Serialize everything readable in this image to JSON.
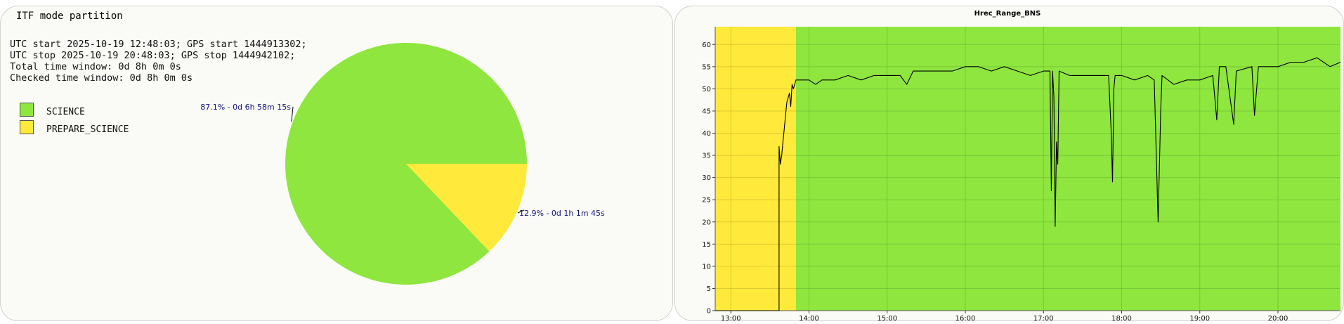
{
  "pie_panel": {
    "title": "ITF mode partition",
    "info_lines": [
      "UTC start 2025-10-19 12:48:03; GPS start 1444913302;",
      "UTC stop 2025-10-19 20:48:03; GPS stop 1444942102;",
      "Total time window: 0d 8h 0m 0s",
      "Checked time window: 0d 8h 0m 0s"
    ]
  },
  "line_panel": {
    "title": "Hrec_Range_BNS"
  },
  "chart_data": [
    {
      "type": "pie",
      "title": "ITF mode partition",
      "slices": [
        {
          "name": "SCIENCE",
          "percent": 87.1,
          "label": "87.1% - 0d 6h 58m 15s",
          "color": "#8ee63e"
        },
        {
          "name": "PREPARE_SCIENCE",
          "percent": 12.9,
          "label": "12.9% - 0d 1h 1m 45s",
          "color": "#ffe93a"
        }
      ],
      "legend": [
        "SCIENCE",
        "PREPARE_SCIENCE"
      ],
      "legend_position": "top-left"
    },
    {
      "type": "line",
      "title": "Hrec_Range_BNS",
      "xlabel": "",
      "ylabel": "",
      "x_ticks": [
        "13:00",
        "14:00",
        "15:00",
        "16:00",
        "17:00",
        "18:00",
        "19:00",
        "20:00"
      ],
      "y_ticks": [
        0,
        5,
        10,
        15,
        20,
        25,
        30,
        35,
        40,
        45,
        50,
        55,
        60
      ],
      "xlim": [
        "12:48",
        "20:48"
      ],
      "ylim": [
        0,
        64
      ],
      "grid": true,
      "background_bands": [
        {
          "mode": "PREPARE_SCIENCE",
          "from": "12:48",
          "to": "13:50",
          "color": "#ffe93a"
        },
        {
          "mode": "SCIENCE",
          "from": "13:50",
          "to": "20:48",
          "color": "#8ee63e"
        }
      ],
      "series": [
        {
          "color": "#000000",
          "points": [
            [
              "12:48",
              0
            ],
            [
              "13:30",
              0
            ],
            [
              "13:37",
              0
            ],
            [
              "13:37",
              37
            ],
            [
              "13:38",
              33
            ],
            [
              "13:39",
              35
            ],
            [
              "13:40",
              38
            ],
            [
              "13:41",
              41
            ],
            [
              "13:42",
              44
            ],
            [
              "13:43",
              47
            ],
            [
              "13:44",
              48
            ],
            [
              "13:45",
              49
            ],
            [
              "13:46",
              46
            ],
            [
              "13:47",
              51
            ],
            [
              "13:48",
              50
            ],
            [
              "13:50",
              52
            ],
            [
              "13:55",
              52
            ],
            [
              "14:00",
              52
            ],
            [
              "14:05",
              51
            ],
            [
              "14:10",
              52
            ],
            [
              "14:20",
              52
            ],
            [
              "14:30",
              53
            ],
            [
              "14:40",
              52
            ],
            [
              "14:50",
              53
            ],
            [
              "15:00",
              53
            ],
            [
              "15:10",
              53
            ],
            [
              "15:15",
              51
            ],
            [
              "15:20",
              54
            ],
            [
              "15:30",
              54
            ],
            [
              "15:40",
              54
            ],
            [
              "15:50",
              54
            ],
            [
              "16:00",
              55
            ],
            [
              "16:10",
              55
            ],
            [
              "16:20",
              54
            ],
            [
              "16:30",
              55
            ],
            [
              "16:40",
              54
            ],
            [
              "16:50",
              53
            ],
            [
              "17:00",
              54
            ],
            [
              "17:05",
              54
            ],
            [
              "17:06",
              27
            ],
            [
              "17:07",
              54
            ],
            [
              "17:08",
              48
            ],
            [
              "17:09",
              19
            ],
            [
              "17:10",
              38
            ],
            [
              "17:11",
              33
            ],
            [
              "17:12",
              54
            ],
            [
              "17:20",
              53
            ],
            [
              "17:30",
              53
            ],
            [
              "17:40",
              53
            ],
            [
              "17:50",
              53
            ],
            [
              "17:52",
              40
            ],
            [
              "17:53",
              29
            ],
            [
              "17:54",
              50
            ],
            [
              "17:55",
              53
            ],
            [
              "18:00",
              53
            ],
            [
              "18:10",
              52
            ],
            [
              "18:20",
              53
            ],
            [
              "18:25",
              52
            ],
            [
              "18:28",
              20
            ],
            [
              "18:30",
              45
            ],
            [
              "18:31",
              53
            ],
            [
              "18:40",
              51
            ],
            [
              "18:50",
              52
            ],
            [
              "19:00",
              52
            ],
            [
              "19:10",
              53
            ],
            [
              "19:13",
              43
            ],
            [
              "19:15",
              55
            ],
            [
              "19:20",
              55
            ],
            [
              "19:26",
              42
            ],
            [
              "19:28",
              54
            ],
            [
              "19:40",
              55
            ],
            [
              "19:42",
              44
            ],
            [
              "19:45",
              55
            ],
            [
              "20:00",
              55
            ],
            [
              "20:10",
              56
            ],
            [
              "20:20",
              56
            ],
            [
              "20:30",
              57
            ],
            [
              "20:35",
              56
            ],
            [
              "20:40",
              55
            ],
            [
              "20:48",
              56
            ]
          ]
        }
      ]
    }
  ]
}
